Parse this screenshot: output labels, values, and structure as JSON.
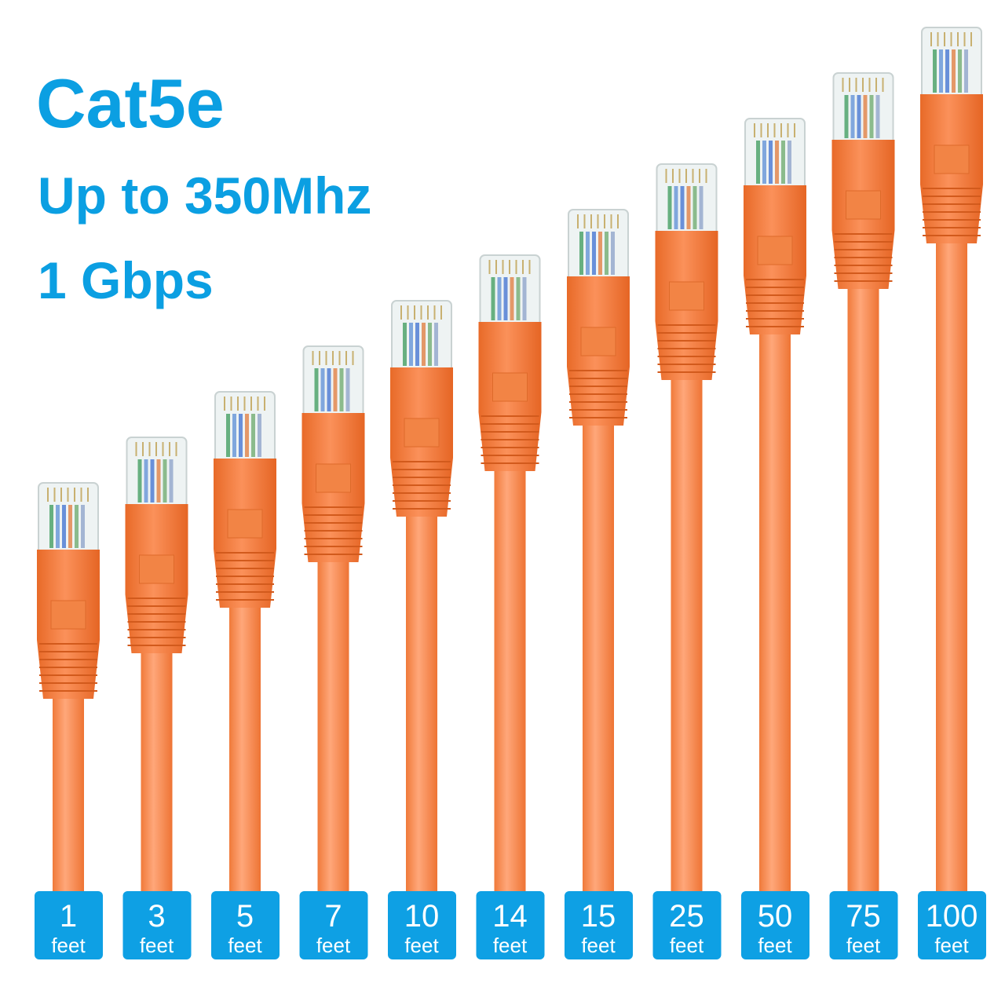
{
  "header": {
    "title": "Cat5e",
    "lines": [
      "Up to 350Mhz",
      "1 Gbps"
    ]
  },
  "cables": [
    {
      "length": "1",
      "unit": "feet"
    },
    {
      "length": "3",
      "unit": "feet"
    },
    {
      "length": "5",
      "unit": "feet"
    },
    {
      "length": "7",
      "unit": "feet"
    },
    {
      "length": "10",
      "unit": "feet"
    },
    {
      "length": "14",
      "unit": "feet"
    },
    {
      "length": "15",
      "unit": "feet"
    },
    {
      "length": "25",
      "unit": "feet"
    },
    {
      "length": "50",
      "unit": "feet"
    },
    {
      "length": "75",
      "unit": "feet"
    },
    {
      "length": "100",
      "unit": "feet"
    }
  ]
}
